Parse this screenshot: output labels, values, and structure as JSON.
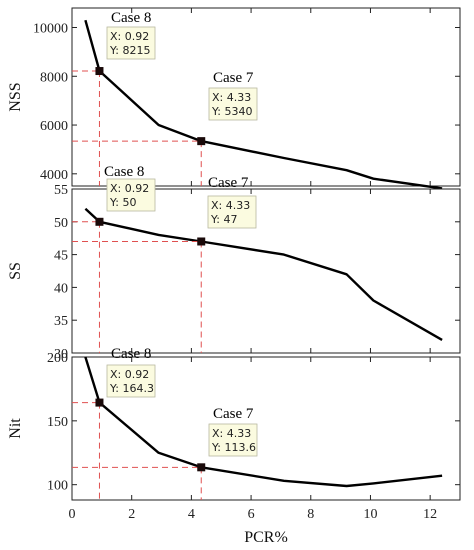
{
  "chart_data": [
    {
      "type": "line",
      "ylabel": "NSS",
      "x": [
        0.45,
        0.92,
        2.9,
        4.33,
        7.1,
        9.2,
        10.1,
        12.4
      ],
      "y": [
        10300,
        8215,
        6000,
        5340,
        4650,
        4150,
        3800,
        3400
      ],
      "xlim": [
        0,
        13
      ],
      "ylim": [
        3500,
        10800
      ],
      "yticks": [
        "4000",
        "6000",
        "8000",
        "10000"
      ],
      "points": [
        {
          "case": "Case 8",
          "x": 0.92,
          "y": 8215,
          "x_text": "X: 0.92",
          "y_text": "Y: 8215"
        },
        {
          "case": "Case 7",
          "x": 4.33,
          "y": 5340,
          "x_text": "X: 4.33",
          "y_text": "Y: 5340"
        }
      ]
    },
    {
      "type": "line",
      "ylabel": "SS",
      "x": [
        0.45,
        0.92,
        2.9,
        4.33,
        7.1,
        9.2,
        10.1,
        12.4
      ],
      "y": [
        52,
        50,
        48,
        47,
        45,
        42,
        38,
        32
      ],
      "xlim": [
        0,
        13
      ],
      "ylim": [
        30,
        55
      ],
      "yticks": [
        "30",
        "35",
        "40",
        "45",
        "50",
        "55"
      ],
      "points": [
        {
          "case": "Case 8",
          "x": 0.92,
          "y": 50,
          "x_text": "X: 0.92",
          "y_text": "Y: 50"
        },
        {
          "case": "Case 7",
          "x": 4.33,
          "y": 47,
          "x_text": "X: 4.33",
          "y_text": "Y: 47"
        }
      ]
    },
    {
      "type": "line",
      "ylabel": "Nit",
      "xlabel": "PCR%",
      "x": [
        0.45,
        0.92,
        2.9,
        4.33,
        7.1,
        9.2,
        10.1,
        12.4
      ],
      "y": [
        200,
        164.3,
        125,
        113.6,
        103,
        99,
        101,
        107
      ],
      "xlim": [
        0,
        13
      ],
      "ylim": [
        88,
        200
      ],
      "xticks": [
        "0",
        "2",
        "4",
        "6",
        "8",
        "10",
        "12"
      ],
      "yticks": [
        "100",
        "150",
        "200"
      ],
      "points": [
        {
          "case": "Case 8",
          "x": 0.92,
          "y": 164.3,
          "x_text": "X: 0.92",
          "y_text": "Y: 164.3"
        },
        {
          "case": "Case 7",
          "x": 4.33,
          "y": 113.6,
          "x_text": "X: 4.33",
          "y_text": "Y: 113.6"
        }
      ]
    }
  ]
}
